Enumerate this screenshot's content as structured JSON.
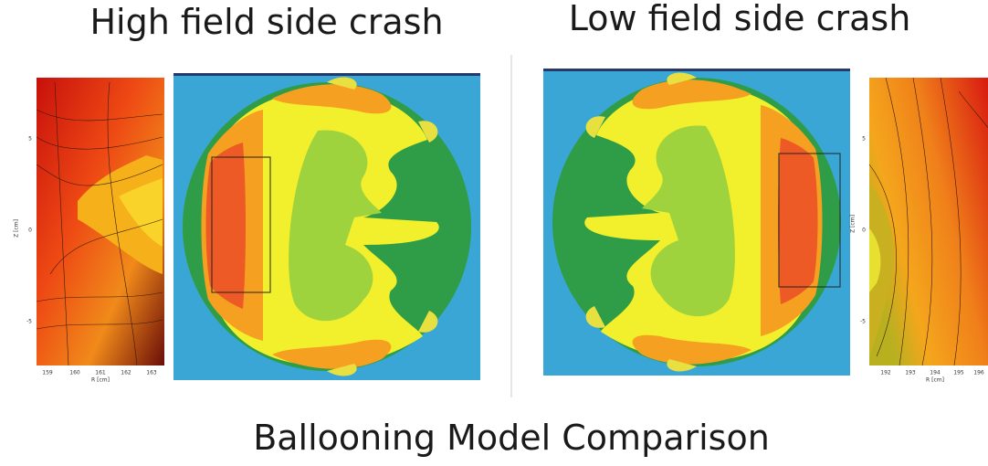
{
  "titles": {
    "left": "High field side crash",
    "right": "Low field side crash",
    "bottom": "Ballooning Model  Comparison"
  },
  "panels": [
    {
      "y_label": "Z [cm]",
      "y_ticks": [
        "5",
        "0",
        "-5"
      ],
      "x_label": "R [cm]",
      "x_ticks": [
        "159",
        "160",
        "161",
        "162",
        "163"
      ]
    },
    {
      "y_label": "Z [cm]",
      "y_ticks": [
        "5",
        "0",
        "-5"
      ],
      "x_label": "R [cm]",
      "x_ticks": [
        "192",
        "193",
        "194",
        "195",
        "196"
      ]
    }
  ]
}
